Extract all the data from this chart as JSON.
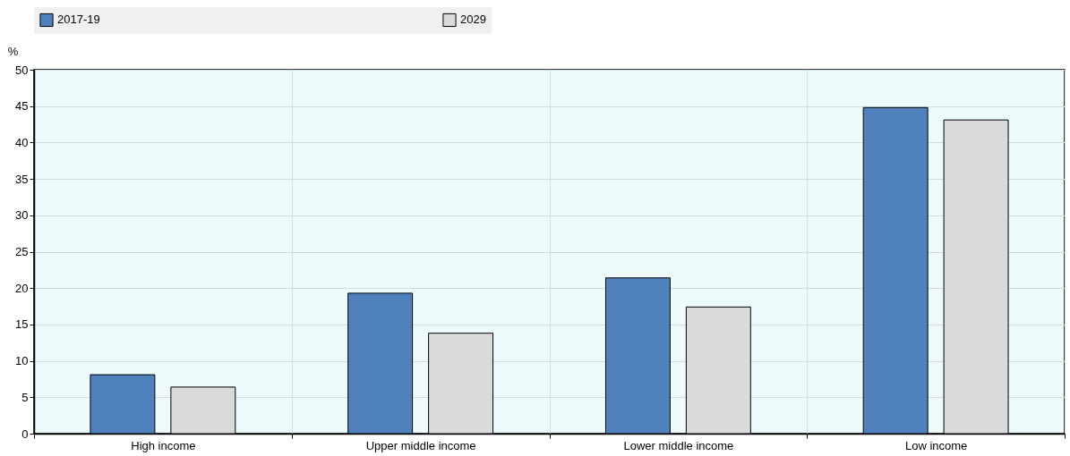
{
  "chart_data": {
    "type": "bar",
    "ylabel": "%",
    "categories": [
      "High income",
      "Upper middle income",
      "Lower middle income",
      "Low income"
    ],
    "series": [
      {
        "name": "2017-19",
        "color": "#4f81bd",
        "values": [
          8.1,
          19.3,
          21.4,
          44.8
        ]
      },
      {
        "name": "2029",
        "color": "#dadada",
        "values": [
          6.4,
          13.8,
          17.4,
          43.1
        ]
      }
    ],
    "ylim": [
      0,
      50
    ],
    "yticks": [
      0,
      5,
      10,
      15,
      20,
      25,
      30,
      35,
      40,
      45,
      50
    ],
    "grid": true,
    "legend": "top"
  }
}
